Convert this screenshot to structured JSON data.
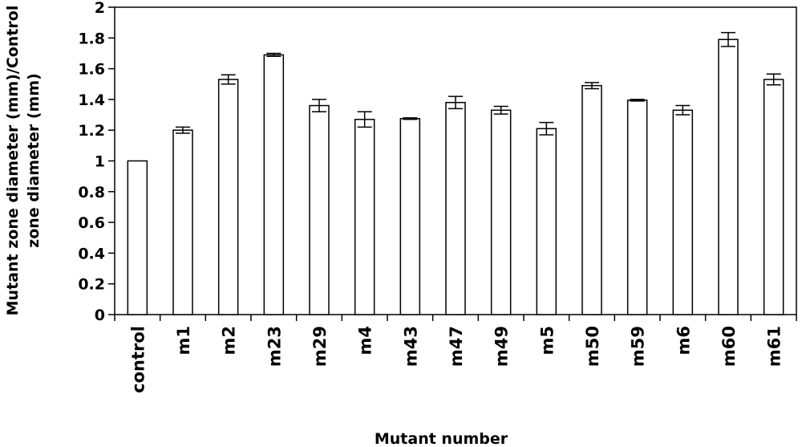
{
  "chart_data": {
    "type": "bar",
    "title": "",
    "xlabel": "Mutant number",
    "ylabel_line1": "Mutant zone diameter (mm)/Control",
    "ylabel_line2": "zone diameter (mm)",
    "ylim": [
      0,
      2
    ],
    "yticks": [
      "0",
      "0.2",
      "0.4",
      "0.6",
      "0.8",
      "1",
      "1.2",
      "1.4",
      "1.6",
      "1.8",
      "2"
    ],
    "grid": false,
    "legend": "none",
    "categories": [
      "control",
      "m1",
      "m2",
      "m23",
      "m29",
      "m4",
      "m43",
      "m47",
      "m49",
      "m5",
      "m50",
      "m59",
      "m6",
      "m60",
      "m61"
    ],
    "values": [
      1.0,
      1.2,
      1.53,
      1.69,
      1.36,
      1.27,
      1.275,
      1.38,
      1.33,
      1.21,
      1.49,
      1.395,
      1.33,
      1.79,
      1.53
    ],
    "errors": [
      0,
      0.02,
      0.03,
      0.01,
      0.04,
      0.05,
      0.005,
      0.04,
      0.025,
      0.04,
      0.02,
      0.005,
      0.03,
      0.045,
      0.035
    ],
    "colors": {
      "bar_fill": "#ffffff",
      "bar_stroke": "#000000",
      "axis": "#000000"
    }
  }
}
